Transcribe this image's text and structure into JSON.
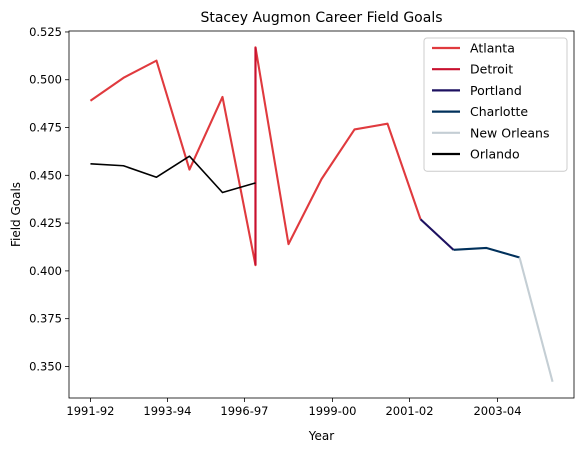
{
  "chart_data": {
    "type": "line",
    "title": "Stacey Augmon Career Field Goals",
    "xlabel": "Year",
    "ylabel": "Field Goals",
    "xlim": [
      -0.65,
      14.65
    ],
    "ylim": [
      0.3335,
      0.5255
    ],
    "x_ticks": [
      {
        "x": 0,
        "label": "1991-92"
      },
      {
        "x": 2.333,
        "label": "1993-94"
      },
      {
        "x": 4.666,
        "label": "1996-97"
      },
      {
        "x": 7.333,
        "label": "1999-00"
      },
      {
        "x": 9.667,
        "label": "2001-02"
      },
      {
        "x": 12.333,
        "label": "2003-04"
      }
    ],
    "y_ticks": [
      0.35,
      0.375,
      0.4,
      0.425,
      0.45,
      0.475,
      0.5,
      0.525
    ],
    "y_tick_labels": [
      "0.350",
      "0.375",
      "0.400",
      "0.425",
      "0.450",
      "0.475",
      "0.500",
      "0.525"
    ],
    "legend_position": "top-right",
    "series": [
      {
        "name": "Atlanta",
        "color": "#E03A3E",
        "points": [
          [
            0,
            0.489
          ],
          [
            1,
            0.501
          ],
          [
            2,
            0.51
          ],
          [
            3,
            0.453
          ],
          [
            4,
            0.491
          ],
          [
            5,
            0.403
          ],
          [
            5,
            0.517
          ],
          [
            6,
            0.414
          ],
          [
            7,
            0.448
          ],
          [
            8,
            0.474
          ],
          [
            9,
            0.477
          ],
          [
            10,
            0.427
          ]
        ]
      },
      {
        "name": "Detroit",
        "color": "#C8102E",
        "points": [
          [
            5,
            0.517
          ],
          [
            5,
            0.403
          ]
        ]
      },
      {
        "name": "Portland",
        "color": "#1D1160",
        "points": [
          [
            10,
            0.427
          ],
          [
            11,
            0.411
          ]
        ]
      },
      {
        "name": "Charlotte",
        "color": "#00305B",
        "points": [
          [
            11,
            0.411
          ],
          [
            12,
            0.412
          ],
          [
            13,
            0.407
          ]
        ]
      },
      {
        "name": "New Orleans",
        "color": "#C4CED4",
        "points": [
          [
            13,
            0.407
          ],
          [
            14,
            0.342
          ]
        ]
      },
      {
        "name": "Orlando",
        "color": "#000000",
        "points": [
          [
            0,
            0.456
          ],
          [
            1,
            0.455
          ],
          [
            2,
            0.449
          ],
          [
            3,
            0.46
          ],
          [
            4,
            0.441
          ],
          [
            5,
            0.446
          ]
        ]
      }
    ]
  }
}
